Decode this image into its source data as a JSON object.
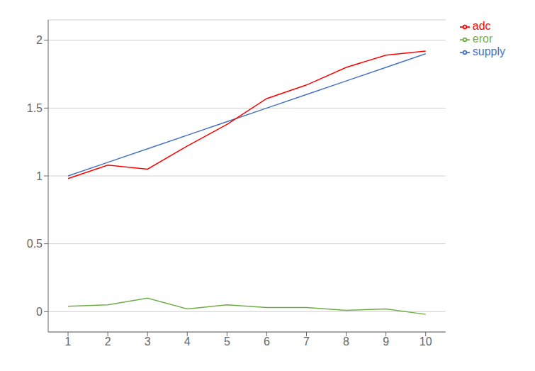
{
  "chart_data": {
    "type": "line",
    "x": [
      1,
      2,
      3,
      4,
      5,
      6,
      7,
      8,
      9,
      10
    ],
    "series": [
      {
        "name": "supply",
        "color": "#4472C4",
        "values": [
          1.0,
          1.1,
          1.2,
          1.3,
          1.4,
          1.5,
          1.6,
          1.7,
          1.8,
          1.9
        ]
      },
      {
        "name": "adc",
        "color": "#FF0000",
        "values": [
          0.98,
          1.08,
          1.05,
          1.22,
          1.38,
          1.57,
          1.67,
          1.8,
          1.89,
          1.92
        ]
      },
      {
        "name": "eror",
        "color": "#70AD47",
        "values": [
          0.04,
          0.05,
          0.1,
          0.02,
          0.05,
          0.03,
          0.03,
          0.01,
          0.02,
          -0.02
        ]
      }
    ],
    "xlim": [
      0.5,
      10.5
    ],
    "ylim": [
      -0.15,
      2.15
    ],
    "xticks": [
      1,
      2,
      3,
      4,
      5,
      6,
      7,
      8,
      9,
      10
    ],
    "yticks": [
      0,
      0.5,
      1,
      1.5,
      2
    ],
    "grid": "y",
    "legend": "right"
  }
}
